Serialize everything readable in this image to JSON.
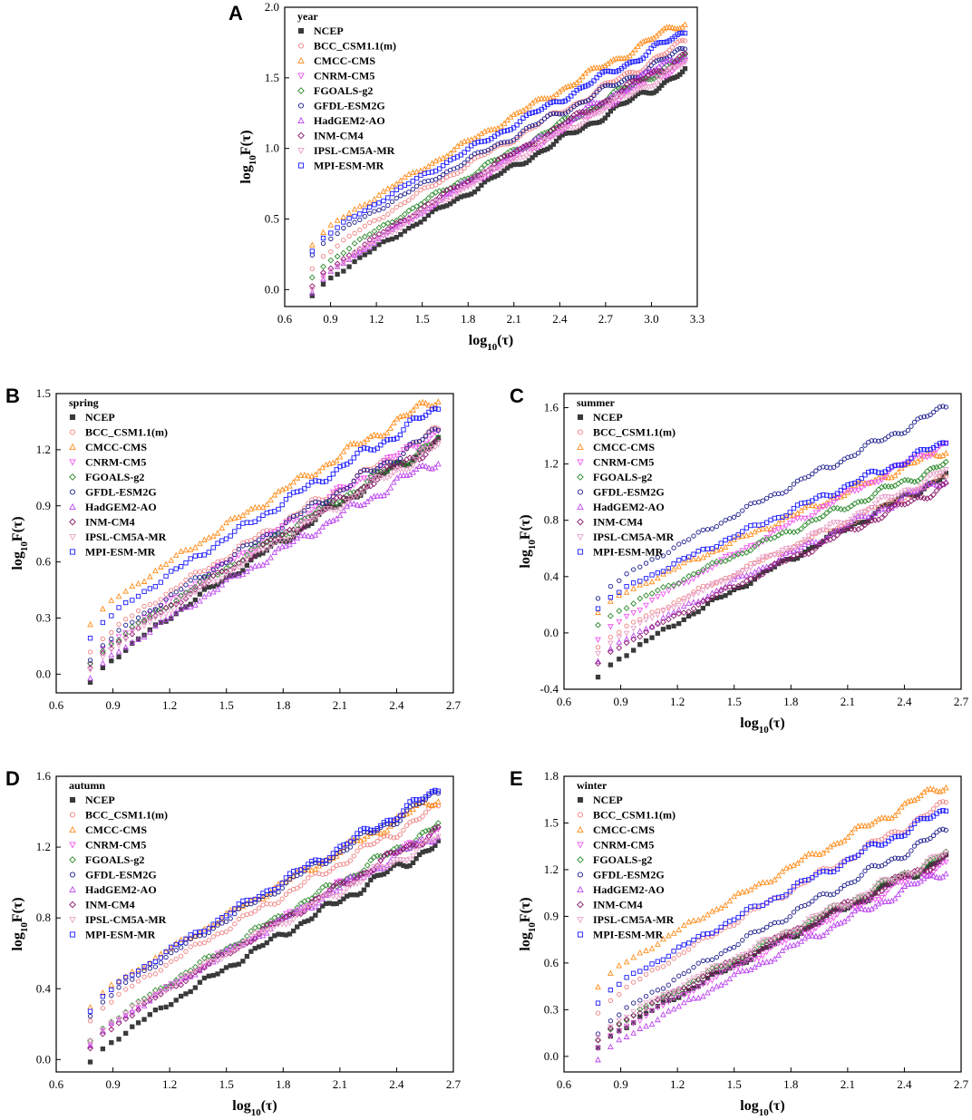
{
  "figure": {
    "series_names": [
      "NCEP",
      "BCC_CSM1.1(m)",
      "CMCC-CMS",
      "CNRM-CM5",
      "FGOALS-g2",
      "GFDL-ESM2G",
      "HadGEM2-AO",
      "INM-CM4",
      "IPSL-CM5A-MR",
      "MPI-ESM-MR"
    ],
    "colors": {
      "NCEP": "#3a3a3a",
      "BCC_CSM1.1(m)": "#f08080",
      "CMCC-CMS": "#ff8c1a",
      "CNRM-CM5": "#ee55ee",
      "FGOALS-g2": "#2e8b2e",
      "GFDL-ESM2G": "#1a1a8c",
      "HadGEM2-AO": "#bb44ee",
      "INM-CM4": "#8b1a6b",
      "IPSL-CM5A-MR": "#e8a0c8",
      "MPI-ESM-MR": "#1a1aff"
    },
    "markers": {
      "NCEP": "square-filled",
      "BCC_CSM1.1(m)": "circle",
      "CMCC-CMS": "triangle-up",
      "CNRM-CM5": "triangle-down",
      "FGOALS-g2": "diamond",
      "GFDL-ESM2G": "circle",
      "HadGEM2-AO": "triangle-up",
      "INM-CM4": "diamond",
      "IPSL-CM5A-MR": "triangle-down",
      "MPI-ESM-MR": "square"
    }
  },
  "chart_data": [
    {
      "panel": "A",
      "type": "scatter",
      "legend_title": "year",
      "legend_position": "top-left",
      "xlabel": "log10(τ)",
      "ylabel": "log10F(τ)",
      "xlim": [
        0.6,
        3.3
      ],
      "ylim": [
        -0.12,
        2.0
      ],
      "xticks": [
        "0.6",
        "0.9",
        "1.2",
        "1.5",
        "1.8",
        "2.1",
        "2.4",
        "2.7",
        "3.0",
        "3.3"
      ],
      "yticks": [
        "0.0",
        "0.5",
        "1.0",
        "1.5",
        "2.0"
      ],
      "x_range": [
        0.78,
        3.22
      ],
      "series": [
        {
          "name": "NCEP",
          "y_start": -0.05,
          "y_end": 1.55
        },
        {
          "name": "BCC_CSM1.1(m)",
          "y_start": 0.15,
          "y_end": 1.75
        },
        {
          "name": "CMCC-CMS",
          "y_start": 0.32,
          "y_end": 1.9
        },
        {
          "name": "CNRM-CM5",
          "y_start": 0.0,
          "y_end": 1.62
        },
        {
          "name": "FGOALS-g2",
          "y_start": 0.08,
          "y_end": 1.65
        },
        {
          "name": "GFDL-ESM2G",
          "y_start": 0.25,
          "y_end": 1.7
        },
        {
          "name": "HadGEM2-AO",
          "y_start": -0.02,
          "y_end": 1.68
        },
        {
          "name": "INM-CM4",
          "y_start": 0.02,
          "y_end": 1.66
        },
        {
          "name": "IPSL-CM5A-MR",
          "y_start": 0.0,
          "y_end": 1.6
        },
        {
          "name": "MPI-ESM-MR",
          "y_start": 0.28,
          "y_end": 1.82
        }
      ]
    },
    {
      "panel": "B",
      "type": "scatter",
      "legend_title": "spring",
      "legend_position": "top-left",
      "xlabel": "log10(τ)",
      "ylabel": "log10F(τ)",
      "xlim": [
        0.6,
        2.7
      ],
      "ylim": [
        -0.1,
        1.5
      ],
      "xticks": [
        "0.6",
        "0.9",
        "1.2",
        "1.5",
        "1.8",
        "2.1",
        "2.4",
        "2.7"
      ],
      "yticks": [
        "0.0",
        "0.3",
        "0.6",
        "0.9",
        "1.2",
        "1.5"
      ],
      "x_range": [
        0.78,
        2.62
      ],
      "series": [
        {
          "name": "NCEP",
          "y_start": -0.05,
          "y_end": 1.25
        },
        {
          "name": "BCC_CSM1.1(m)",
          "y_start": 0.12,
          "y_end": 1.3
        },
        {
          "name": "CMCC-CMS",
          "y_start": 0.27,
          "y_end": 1.48
        },
        {
          "name": "CNRM-CM5",
          "y_start": 0.05,
          "y_end": 1.3
        },
        {
          "name": "FGOALS-g2",
          "y_start": 0.05,
          "y_end": 1.25
        },
        {
          "name": "GFDL-ESM2G",
          "y_start": 0.08,
          "y_end": 1.3
        },
        {
          "name": "HadGEM2-AO",
          "y_start": -0.02,
          "y_end": 1.15
        },
        {
          "name": "INM-CM4",
          "y_start": 0.03,
          "y_end": 1.24
        },
        {
          "name": "IPSL-CM5A-MR",
          "y_start": 0.02,
          "y_end": 1.22
        },
        {
          "name": "MPI-ESM-MR",
          "y_start": 0.2,
          "y_end": 1.42
        }
      ]
    },
    {
      "panel": "C",
      "type": "scatter",
      "legend_title": "summer",
      "legend_position": "top-left",
      "xlabel": "log10(τ)",
      "ylabel": "log10F(τ)",
      "xlim": [
        0.6,
        2.7
      ],
      "ylim": [
        -0.4,
        1.7
      ],
      "xticks": [
        "0.6",
        "0.9",
        "1.2",
        "1.5",
        "1.8",
        "2.1",
        "2.4",
        "2.7"
      ],
      "yticks": [
        "-0.4",
        "0.0",
        "0.4",
        "0.8",
        "1.2",
        "1.6"
      ],
      "x_range": [
        0.78,
        2.62
      ],
      "series": [
        {
          "name": "NCEP",
          "y_start": -0.32,
          "y_end": 1.12
        },
        {
          "name": "BCC_CSM1.1(m)",
          "y_start": -0.1,
          "y_end": 1.1
        },
        {
          "name": "CMCC-CMS",
          "y_start": 0.15,
          "y_end": 1.3
        },
        {
          "name": "CNRM-CM5",
          "y_start": -0.05,
          "y_end": 1.35
        },
        {
          "name": "FGOALS-g2",
          "y_start": 0.05,
          "y_end": 1.2
        },
        {
          "name": "GFDL-ESM2G",
          "y_start": 0.25,
          "y_end": 1.6
        },
        {
          "name": "HadGEM2-AO",
          "y_start": -0.2,
          "y_end": 1.1
        },
        {
          "name": "INM-CM4",
          "y_start": -0.22,
          "y_end": 1.05
        },
        {
          "name": "IPSL-CM5A-MR",
          "y_start": -0.15,
          "y_end": 1.15
        },
        {
          "name": "MPI-ESM-MR",
          "y_start": 0.18,
          "y_end": 1.35
        }
      ]
    },
    {
      "panel": "D",
      "type": "scatter",
      "legend_title": "autumn",
      "legend_position": "top-left",
      "xlabel": "log10(τ)",
      "ylabel": "log10F(τ)",
      "xlim": [
        0.6,
        2.7
      ],
      "ylim": [
        -0.07,
        1.6
      ],
      "xticks": [
        "0.6",
        "0.9",
        "1.2",
        "1.5",
        "1.8",
        "2.1",
        "2.4",
        "2.7"
      ],
      "yticks": [
        "0.0",
        "0.4",
        "0.8",
        "1.2",
        "1.6"
      ],
      "x_range": [
        0.78,
        2.62
      ],
      "series": [
        {
          "name": "NCEP",
          "y_start": -0.02,
          "y_end": 1.22
        },
        {
          "name": "BCC_CSM1.1(m)",
          "y_start": 0.22,
          "y_end": 1.42
        },
        {
          "name": "CMCC-CMS",
          "y_start": 0.3,
          "y_end": 1.48
        },
        {
          "name": "CNRM-CM5",
          "y_start": 0.08,
          "y_end": 1.3
        },
        {
          "name": "FGOALS-g2",
          "y_start": 0.1,
          "y_end": 1.32
        },
        {
          "name": "GFDL-ESM2G",
          "y_start": 0.25,
          "y_end": 1.5
        },
        {
          "name": "HadGEM2-AO",
          "y_start": 0.08,
          "y_end": 1.28
        },
        {
          "name": "INM-CM4",
          "y_start": 0.06,
          "y_end": 1.3
        },
        {
          "name": "IPSL-CM5A-MR",
          "y_start": 0.1,
          "y_end": 1.25
        },
        {
          "name": "MPI-ESM-MR",
          "y_start": 0.28,
          "y_end": 1.52
        }
      ]
    },
    {
      "panel": "E",
      "type": "scatter",
      "legend_title": "winter",
      "legend_position": "top-left",
      "xlabel": "log10(τ)",
      "ylabel": "log10F(τ)",
      "xlim": [
        0.6,
        2.7
      ],
      "ylim": [
        -0.1,
        1.8
      ],
      "xticks": [
        "0.6",
        "0.9",
        "1.2",
        "1.5",
        "1.8",
        "2.1",
        "2.4",
        "2.7"
      ],
      "yticks": [
        "0.0",
        "0.3",
        "0.6",
        "0.9",
        "1.2",
        "1.5",
        "1.8"
      ],
      "x_range": [
        0.78,
        2.62
      ],
      "series": [
        {
          "name": "NCEP",
          "y_start": 0.05,
          "y_end": 1.28
        },
        {
          "name": "BCC_CSM1.1(m)",
          "y_start": 0.28,
          "y_end": 1.62
        },
        {
          "name": "CMCC-CMS",
          "y_start": 0.45,
          "y_end": 1.75
        },
        {
          "name": "CNRM-CM5",
          "y_start": 0.05,
          "y_end": 1.25
        },
        {
          "name": "FGOALS-g2",
          "y_start": 0.1,
          "y_end": 1.3
        },
        {
          "name": "GFDL-ESM2G",
          "y_start": 0.15,
          "y_end": 1.45
        },
        {
          "name": "HadGEM2-AO",
          "y_start": -0.02,
          "y_end": 1.2
        },
        {
          "name": "INM-CM4",
          "y_start": 0.1,
          "y_end": 1.28
        },
        {
          "name": "IPSL-CM5A-MR",
          "y_start": 0.12,
          "y_end": 1.3
        },
        {
          "name": "MPI-ESM-MR",
          "y_start": 0.35,
          "y_end": 1.58
        }
      ]
    }
  ]
}
